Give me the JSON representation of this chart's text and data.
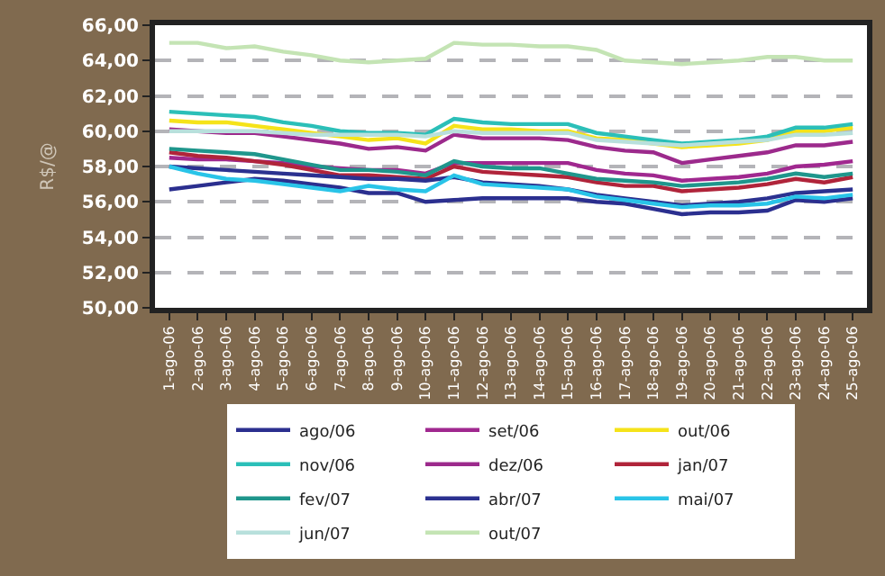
{
  "chart_data": {
    "type": "line",
    "ylabel": "R$/@",
    "categories": [
      "1-ago-06",
      "2-ago-06",
      "3-ago-06",
      "4-ago-06",
      "5-ago-06",
      "6-ago-06",
      "7-ago-06",
      "8-ago-06",
      "9-ago-06",
      "10-ago-06",
      "11-ago-06",
      "12-ago-06",
      "13-ago-06",
      "14-ago-06",
      "15-ago-06",
      "16-ago-06",
      "17-ago-06",
      "18-ago-06",
      "19-ago-06",
      "20-ago-06",
      "21-ago-06",
      "22-ago-06",
      "23-ago-06",
      "24-ago-06",
      "25-ago-06"
    ],
    "ylim": [
      50,
      66
    ],
    "yticks": [
      {
        "value": 50,
        "label": "50,00"
      },
      {
        "value": 52,
        "label": "52,00"
      },
      {
        "value": 54,
        "label": "54,00"
      },
      {
        "value": 56,
        "label": "56,00"
      },
      {
        "value": 58,
        "label": "58,00"
      },
      {
        "value": 60,
        "label": "60,00"
      },
      {
        "value": 62,
        "label": "62,00"
      },
      {
        "value": 64,
        "label": "64,00"
      },
      {
        "value": 66,
        "label": "66,00"
      }
    ],
    "grid": "y",
    "legend": "bottom",
    "marker": "none",
    "line_style": "solid",
    "series": [
      {
        "name": "ago/06",
        "color": "#2b2f8f",
        "values": [
          56.7,
          56.9,
          57.1,
          57.3,
          57.2,
          57.0,
          56.8,
          56.5,
          56.5,
          56.0,
          56.1,
          56.2,
          56.2,
          56.2,
          56.2,
          56.0,
          55.9,
          55.6,
          55.3,
          55.4,
          55.4,
          55.5,
          56.1,
          56.0,
          56.2
        ]
      },
      {
        "name": "set/06",
        "color": "#a0288f",
        "values": [
          58.5,
          58.4,
          58.4,
          58.3,
          58.2,
          58.0,
          57.9,
          57.8,
          57.8,
          57.6,
          58.2,
          58.2,
          58.2,
          58.2,
          58.2,
          57.8,
          57.6,
          57.5,
          57.2,
          57.3,
          57.4,
          57.6,
          58.0,
          58.1,
          58.3
        ]
      },
      {
        "name": "out/06",
        "color": "#f5e31a",
        "values": [
          60.6,
          60.5,
          60.5,
          60.3,
          60.1,
          59.9,
          59.7,
          59.5,
          59.6,
          59.3,
          60.3,
          60.1,
          60.1,
          60.0,
          60.0,
          59.6,
          59.5,
          59.3,
          59.1,
          59.2,
          59.3,
          59.5,
          60.0,
          60.0,
          60.2
        ]
      },
      {
        "name": "nov/06",
        "color": "#2bbfb8",
        "values": [
          61.1,
          61.0,
          60.9,
          60.8,
          60.5,
          60.3,
          60.0,
          59.9,
          59.9,
          59.8,
          60.7,
          60.5,
          60.4,
          60.4,
          60.4,
          59.9,
          59.7,
          59.5,
          59.3,
          59.4,
          59.5,
          59.7,
          60.2,
          60.2,
          60.4
        ]
      },
      {
        "name": "dez/06",
        "color": "#9c2a8c",
        "values": [
          60.1,
          60.0,
          59.9,
          59.9,
          59.7,
          59.5,
          59.3,
          59.0,
          59.1,
          58.9,
          59.8,
          59.6,
          59.6,
          59.6,
          59.5,
          59.1,
          58.9,
          58.8,
          58.2,
          58.4,
          58.6,
          58.8,
          59.2,
          59.2,
          59.4
        ]
      },
      {
        "name": "jan/07",
        "color": "#b0243a",
        "values": [
          58.8,
          58.6,
          58.5,
          58.3,
          58.1,
          57.8,
          57.5,
          57.5,
          57.4,
          57.3,
          58.0,
          57.7,
          57.6,
          57.5,
          57.4,
          57.1,
          56.9,
          56.9,
          56.6,
          56.7,
          56.8,
          57.0,
          57.3,
          57.1,
          57.4
        ]
      },
      {
        "name": "fev/07",
        "color": "#1f968c",
        "values": [
          59.0,
          58.9,
          58.8,
          58.7,
          58.4,
          58.1,
          57.8,
          57.8,
          57.7,
          57.5,
          58.3,
          58.0,
          57.9,
          57.9,
          57.6,
          57.3,
          57.2,
          57.1,
          56.9,
          57.0,
          57.1,
          57.3,
          57.6,
          57.4,
          57.6
        ]
      },
      {
        "name": "abr/07",
        "color": "#2b3190",
        "values": [
          58.0,
          57.9,
          57.8,
          57.7,
          57.6,
          57.5,
          57.4,
          57.3,
          57.3,
          57.2,
          57.4,
          57.1,
          57.0,
          56.9,
          56.7,
          56.4,
          56.2,
          56.0,
          55.8,
          55.9,
          56.0,
          56.2,
          56.5,
          56.6,
          56.7
        ]
      },
      {
        "name": "mai/07",
        "color": "#29c4e8",
        "values": [
          58.0,
          57.6,
          57.3,
          57.2,
          57.0,
          56.8,
          56.6,
          56.9,
          56.7,
          56.6,
          57.5,
          57.0,
          56.9,
          56.8,
          56.7,
          56.3,
          56.1,
          55.9,
          55.7,
          55.8,
          55.8,
          55.9,
          56.3,
          56.2,
          56.4
        ]
      },
      {
        "name": "jun/07",
        "color": "#b8e0dc",
        "values": [
          60.0,
          60.0,
          60.0,
          60.0,
          59.9,
          59.8,
          59.8,
          59.8,
          59.8,
          59.7,
          60.0,
          59.9,
          59.9,
          59.9,
          59.9,
          59.5,
          59.4,
          59.3,
          59.2,
          59.3,
          59.4,
          59.5,
          59.8,
          59.8,
          59.9
        ]
      },
      {
        "name": "out/07",
        "color": "#c4e4b4",
        "values": [
          65.0,
          65.0,
          64.7,
          64.8,
          64.5,
          64.3,
          64.0,
          63.9,
          64.0,
          64.1,
          65.0,
          64.9,
          64.9,
          64.8,
          64.8,
          64.6,
          64.0,
          63.9,
          63.8,
          63.9,
          64.0,
          64.2,
          64.2,
          64.0,
          64.0
        ]
      }
    ]
  }
}
